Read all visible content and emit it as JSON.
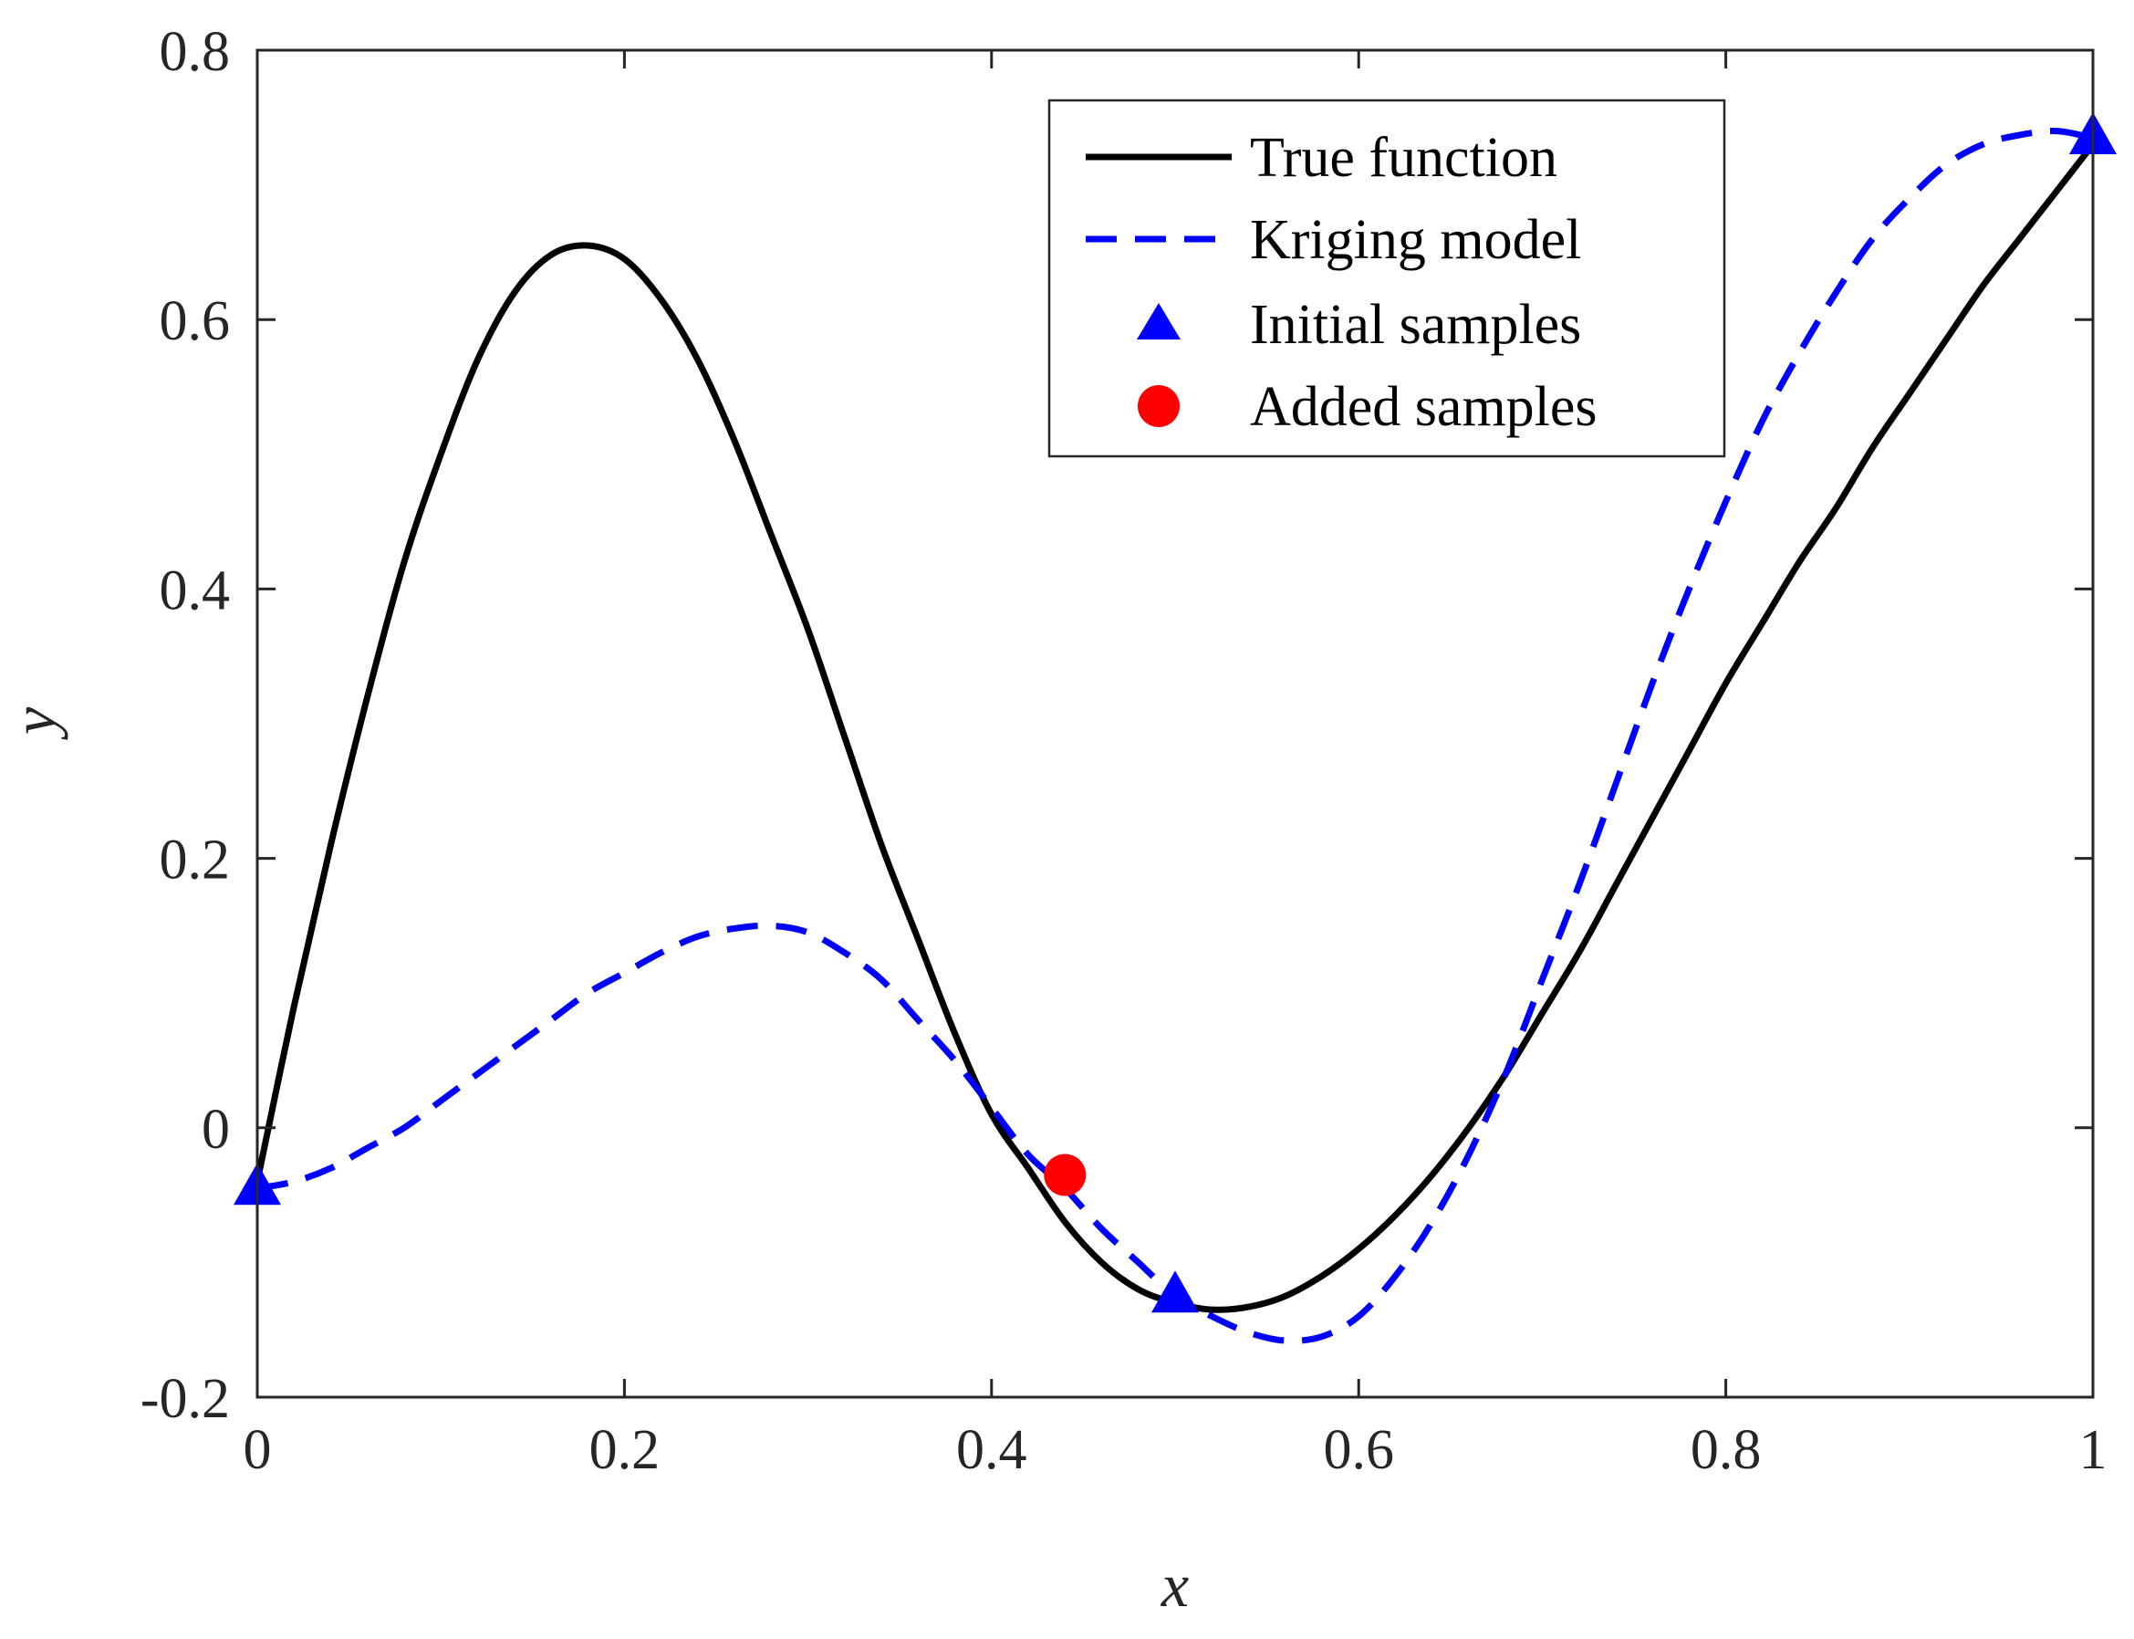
{
  "chart_data": {
    "type": "line",
    "title": "",
    "xlabel": "x",
    "ylabel": "y",
    "xlim": [
      0,
      1
    ],
    "ylim": [
      -0.2,
      0.8
    ],
    "xticks": [
      0,
      0.2,
      0.4,
      0.6,
      0.8,
      1
    ],
    "xtick_labels": [
      "0",
      "0.2",
      "0.4",
      "0.6",
      "0.8",
      "1"
    ],
    "yticks": [
      -0.2,
      0,
      0.2,
      0.4,
      0.6,
      0.8
    ],
    "ytick_labels": [
      "-0.2",
      "0",
      "0.2",
      "0.4",
      "0.6",
      "0.8"
    ],
    "grid": false,
    "legend_position": "top-right",
    "series": [
      {
        "name": "True function",
        "style": "solid",
        "color": "#000000",
        "x": [
          0,
          0.02,
          0.04,
          0.06,
          0.08,
          0.1,
          0.12,
          0.14,
          0.16,
          0.18,
          0.2,
          0.22,
          0.24,
          0.26,
          0.28,
          0.3,
          0.32,
          0.34,
          0.36,
          0.38,
          0.4,
          0.42,
          0.44,
          0.46,
          0.48,
          0.5,
          0.52,
          0.54,
          0.56,
          0.58,
          0.6,
          0.62,
          0.64,
          0.66,
          0.68,
          0.7,
          0.72,
          0.74,
          0.76,
          0.78,
          0.8,
          0.82,
          0.84,
          0.86,
          0.88,
          0.9,
          0.92,
          0.94,
          0.96,
          0.98,
          1.0
        ],
        "y": [
          -0.04,
          0.09,
          0.21,
          0.32,
          0.42,
          0.5,
          0.57,
          0.62,
          0.648,
          0.655,
          0.645,
          0.615,
          0.57,
          0.51,
          0.44,
          0.37,
          0.29,
          0.21,
          0.14,
          0.07,
          0.01,
          -0.03,
          -0.07,
          -0.1,
          -0.12,
          -0.13,
          -0.135,
          -0.133,
          -0.125,
          -0.11,
          -0.09,
          -0.065,
          -0.035,
          0.0,
          0.04,
          0.085,
          0.13,
          0.18,
          0.23,
          0.28,
          0.33,
          0.375,
          0.42,
          0.46,
          0.505,
          0.545,
          0.585,
          0.625,
          0.66,
          0.695,
          0.73
        ]
      },
      {
        "name": "Kriging model",
        "style": "dashed",
        "color": "#0000ff",
        "x": [
          0,
          0.02,
          0.04,
          0.06,
          0.08,
          0.1,
          0.12,
          0.14,
          0.16,
          0.18,
          0.2,
          0.22,
          0.24,
          0.26,
          0.28,
          0.3,
          0.32,
          0.34,
          0.36,
          0.38,
          0.4,
          0.42,
          0.44,
          0.46,
          0.48,
          0.5,
          0.52,
          0.54,
          0.56,
          0.58,
          0.6,
          0.62,
          0.64,
          0.66,
          0.68,
          0.7,
          0.72,
          0.74,
          0.76,
          0.78,
          0.8,
          0.82,
          0.84,
          0.86,
          0.88,
          0.9,
          0.92,
          0.94,
          0.96,
          0.98,
          1.0
        ],
        "y": [
          -0.045,
          -0.04,
          -0.03,
          -0.015,
          0.0,
          0.02,
          0.04,
          0.06,
          0.08,
          0.1,
          0.115,
          0.13,
          0.142,
          0.148,
          0.15,
          0.145,
          0.13,
          0.11,
          0.08,
          0.05,
          0.015,
          -0.02,
          -0.045,
          -0.075,
          -0.1,
          -0.125,
          -0.14,
          -0.152,
          -0.158,
          -0.155,
          -0.14,
          -0.11,
          -0.07,
          -0.02,
          0.04,
          0.11,
          0.18,
          0.255,
          0.33,
          0.4,
          0.465,
          0.525,
          0.575,
          0.62,
          0.66,
          0.69,
          0.715,
          0.73,
          0.737,
          0.74,
          0.735
        ]
      }
    ],
    "markers": [
      {
        "name": "Initial samples",
        "shape": "triangle",
        "color": "#0000ff",
        "x": [
          0,
          0.5,
          1
        ],
        "y": [
          -0.045,
          -0.125,
          0.735
        ]
      },
      {
        "name": "Added samples",
        "shape": "circle",
        "color": "#ff0000",
        "x": [
          0.44
        ],
        "y": [
          -0.035
        ]
      }
    ]
  }
}
